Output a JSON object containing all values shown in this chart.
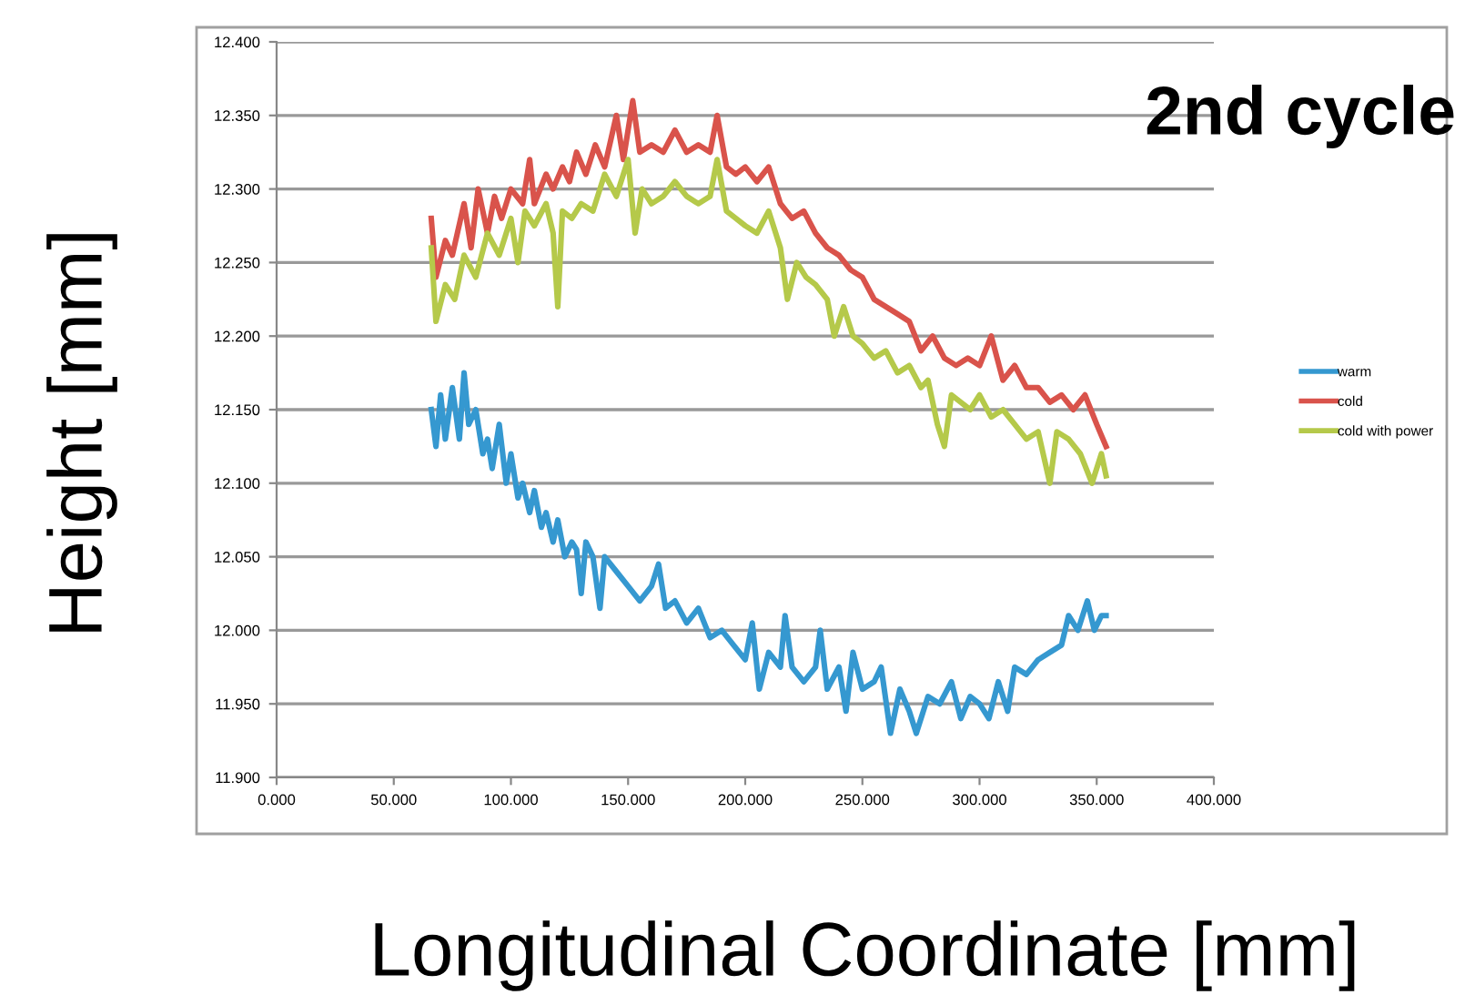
{
  "chart_data": {
    "type": "line",
    "xlabel": "Longitudinal Coordinate [mm]",
    "ylabel": "Height [mm]",
    "annotations": [
      "2nd cycle"
    ],
    "xlim": [
      0,
      400
    ],
    "xticks": [
      {
        "value": 0,
        "label": "0.000"
      },
      {
        "value": 50,
        "label": "50.000"
      },
      {
        "value": 100,
        "label": "100.000"
      },
      {
        "value": 150,
        "label": "150.000"
      },
      {
        "value": 200,
        "label": "200.000"
      },
      {
        "value": 250,
        "label": "250.000"
      },
      {
        "value": 300,
        "label": "300.000"
      },
      {
        "value": 350,
        "label": "350.000"
      },
      {
        "value": 400,
        "label": "400.000"
      }
    ],
    "ylim": [
      11.9,
      12.4
    ],
    "yticks": [
      {
        "value": 11.9,
        "label": "11.900"
      },
      {
        "value": 11.95,
        "label": "11.950"
      },
      {
        "value": 12.0,
        "label": "12.000"
      },
      {
        "value": 12.05,
        "label": "12.050"
      },
      {
        "value": 12.1,
        "label": "12.100"
      },
      {
        "value": 12.15,
        "label": "12.150"
      },
      {
        "value": 12.2,
        "label": "12.200"
      },
      {
        "value": 12.25,
        "label": "12.250"
      },
      {
        "value": 12.3,
        "label": "12.300"
      },
      {
        "value": 12.35,
        "label": "12.350"
      },
      {
        "value": 12.4,
        "label": "12.400"
      }
    ],
    "grid": "y",
    "legend": "right",
    "marker": "none",
    "line_style": "solid",
    "series": [
      {
        "name": "warm",
        "color": "#3598d0",
        "x": [
          66,
          68,
          70,
          72,
          75,
          78,
          80,
          82,
          85,
          88,
          90,
          92,
          95,
          98,
          100,
          103,
          105,
          108,
          110,
          113,
          115,
          118,
          120,
          123,
          126,
          128,
          130,
          132,
          135,
          138,
          140,
          145,
          150,
          155,
          160,
          163,
          166,
          170,
          175,
          180,
          185,
          190,
          195,
          200,
          203,
          206,
          210,
          215,
          217,
          220,
          225,
          230,
          232,
          235,
          240,
          243,
          246,
          250,
          255,
          258,
          262,
          266,
          270,
          273,
          278,
          283,
          288,
          292,
          296,
          300,
          304,
          308,
          312,
          315,
          320,
          325,
          330,
          335,
          338,
          342,
          346,
          349,
          352,
          354
        ],
        "values": [
          12.15,
          12.125,
          12.16,
          12.13,
          12.165,
          12.13,
          12.175,
          12.14,
          12.15,
          12.12,
          12.13,
          12.11,
          12.14,
          12.1,
          12.12,
          12.09,
          12.1,
          12.08,
          12.095,
          12.07,
          12.08,
          12.06,
          12.075,
          12.05,
          12.06,
          12.055,
          12.025,
          12.06,
          12.05,
          12.015,
          12.05,
          12.04,
          12.03,
          12.02,
          12.03,
          12.045,
          12.015,
          12.02,
          12.005,
          12.015,
          11.995,
          12.0,
          11.99,
          11.98,
          12.005,
          11.96,
          11.985,
          11.975,
          12.01,
          11.975,
          11.965,
          11.975,
          12.0,
          11.96,
          11.975,
          11.945,
          11.985,
          11.96,
          11.965,
          11.975,
          11.93,
          11.96,
          11.945,
          11.93,
          11.955,
          11.95,
          11.965,
          11.94,
          11.955,
          11.95,
          11.94,
          11.965,
          11.945,
          11.975,
          11.97,
          11.98,
          11.985,
          11.99,
          12.01,
          12.0,
          12.02,
          12.0,
          12.01,
          12.01
        ]
      },
      {
        "name": "cold",
        "color": "#d9534b",
        "x": [
          66,
          68,
          72,
          75,
          80,
          83,
          86,
          90,
          93,
          96,
          100,
          105,
          108,
          110,
          115,
          118,
          122,
          125,
          128,
          132,
          136,
          140,
          145,
          148,
          152,
          155,
          160,
          165,
          170,
          175,
          180,
          185,
          188,
          192,
          196,
          200,
          205,
          210,
          215,
          220,
          225,
          230,
          235,
          240,
          245,
          250,
          255,
          260,
          265,
          270,
          275,
          280,
          285,
          290,
          295,
          300,
          305,
          310,
          315,
          320,
          325,
          330,
          335,
          340,
          345,
          350,
          354
        ],
        "values": [
          12.28,
          12.24,
          12.265,
          12.255,
          12.29,
          12.26,
          12.3,
          12.27,
          12.295,
          12.28,
          12.3,
          12.29,
          12.32,
          12.29,
          12.31,
          12.3,
          12.315,
          12.305,
          12.325,
          12.31,
          12.33,
          12.315,
          12.35,
          12.32,
          12.36,
          12.325,
          12.33,
          12.325,
          12.34,
          12.325,
          12.33,
          12.325,
          12.35,
          12.315,
          12.31,
          12.315,
          12.305,
          12.315,
          12.29,
          12.28,
          12.285,
          12.27,
          12.26,
          12.255,
          12.245,
          12.24,
          12.225,
          12.22,
          12.215,
          12.21,
          12.19,
          12.2,
          12.185,
          12.18,
          12.185,
          12.18,
          12.2,
          12.17,
          12.18,
          12.165,
          12.165,
          12.155,
          12.16,
          12.15,
          12.16,
          12.14,
          12.125
        ]
      },
      {
        "name": "cold with power",
        "color": "#b5c94a",
        "x": [
          66,
          68,
          72,
          76,
          80,
          85,
          90,
          95,
          100,
          103,
          106,
          110,
          115,
          118,
          120,
          122,
          126,
          130,
          135,
          140,
          145,
          150,
          153,
          156,
          160,
          165,
          170,
          175,
          180,
          185,
          188,
          192,
          196,
          200,
          205,
          210,
          215,
          218,
          222,
          226,
          230,
          235,
          238,
          242,
          246,
          250,
          255,
          260,
          265,
          270,
          275,
          278,
          282,
          285,
          288,
          292,
          296,
          300,
          305,
          310,
          315,
          320,
          325,
          330,
          333,
          338,
          343,
          348,
          352,
          354
        ],
        "values": [
          12.26,
          12.21,
          12.235,
          12.225,
          12.255,
          12.24,
          12.27,
          12.255,
          12.28,
          12.25,
          12.285,
          12.275,
          12.29,
          12.27,
          12.22,
          12.285,
          12.28,
          12.29,
          12.285,
          12.31,
          12.295,
          12.32,
          12.27,
          12.3,
          12.29,
          12.295,
          12.305,
          12.295,
          12.29,
          12.295,
          12.32,
          12.285,
          12.28,
          12.275,
          12.27,
          12.285,
          12.26,
          12.225,
          12.25,
          12.24,
          12.235,
          12.225,
          12.2,
          12.22,
          12.2,
          12.195,
          12.185,
          12.19,
          12.175,
          12.18,
          12.165,
          12.17,
          12.14,
          12.125,
          12.16,
          12.155,
          12.15,
          12.16,
          12.145,
          12.15,
          12.14,
          12.13,
          12.135,
          12.1,
          12.135,
          12.13,
          12.12,
          12.1,
          12.12,
          12.105
        ]
      }
    ]
  }
}
